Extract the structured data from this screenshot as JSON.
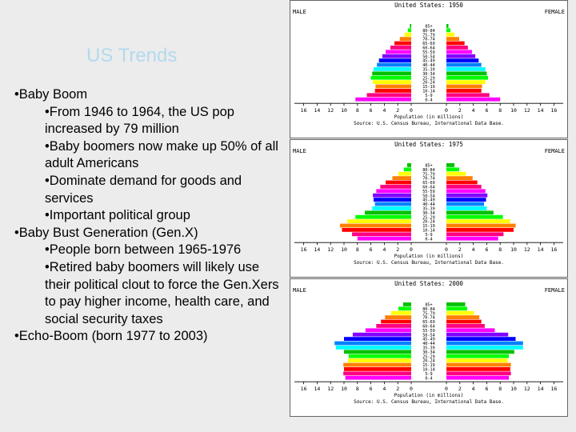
{
  "slide": {
    "title": "US Trends",
    "bullets": [
      {
        "level": 1,
        "text": "•Baby Boom"
      },
      {
        "level": 2,
        "text": "•From 1946 to 1964, the US pop increased by 79 million"
      },
      {
        "level": 2,
        "text": "•Baby boomers now make up 50% of all adult Americans"
      },
      {
        "level": 2,
        "text": "•Dominate demand for goods and services"
      },
      {
        "level": 2,
        "text": "•Important political group"
      },
      {
        "level": 1,
        "text": "•Baby Bust Generation (Gen.X)"
      },
      {
        "level": 2,
        "text": "•People born between 1965-1976"
      },
      {
        "level": 2,
        "text": "•Retired baby boomers will likely use their political clout to force the Gen.Xers to pay higher income, health care, and social security taxes"
      },
      {
        "level": 1,
        "text": "•Echo-Boom (born 1977 to 2003)"
      }
    ]
  },
  "colors": [
    "#ff00ff",
    "#ff0080",
    "#ff0000",
    "#ff8000",
    "#ffff00",
    "#00ff00",
    "#00c000",
    "#00ffff",
    "#0080ff",
    "#0000ff",
    "#8000ff",
    "#ff00ff",
    "#ff0080",
    "#ff0000",
    "#ff8000",
    "#ffff00",
    "#00ff00",
    "#00c000"
  ],
  "chart_data": [
    {
      "type": "bar",
      "title": "United States: 1950",
      "left_label": "MALE",
      "right_label": "FEMALE",
      "xlabel": "Population (in millions)",
      "source": "Source: U.S. Census Bureau, International Data Base.",
      "x_ticks": [
        "16",
        "14",
        "12",
        "10",
        "8",
        "6",
        "4",
        "2",
        "0",
        "0",
        "2",
        "4",
        "6",
        "8",
        "10",
        "12",
        "14",
        "16"
      ],
      "categories": [
        "0-4",
        "5-9",
        "10-14",
        "15-19",
        "20-24",
        "25-29",
        "30-34",
        "35-39",
        "40-44",
        "45-49",
        "50-54",
        "55-59",
        "60-64",
        "65-69",
        "70-74",
        "75-79",
        "80-84",
        "85+"
      ],
      "xlim": [
        0,
        16
      ],
      "series": [
        {
          "name": "MALE",
          "values": [
            8.3,
            6.6,
            5.4,
            5.3,
            5.7,
            6.0,
            5.8,
            5.6,
            5.1,
            4.8,
            4.3,
            3.8,
            3.1,
            2.5,
            1.7,
            1.0,
            0.5,
            0.2
          ]
        },
        {
          "name": "FEMALE",
          "values": [
            8.0,
            6.4,
            5.2,
            5.3,
            5.8,
            6.2,
            6.0,
            5.8,
            5.2,
            4.8,
            4.3,
            3.8,
            3.2,
            2.7,
            1.9,
            1.2,
            0.6,
            0.3
          ]
        }
      ]
    },
    {
      "type": "bar",
      "title": "United States: 1975",
      "left_label": "MALE",
      "right_label": "FEMALE",
      "xlabel": "Population (in millions)",
      "source": "Source: U.S. Census Bureau, International Data Base.",
      "x_ticks": [
        "16",
        "14",
        "12",
        "10",
        "8",
        "6",
        "4",
        "2",
        "0",
        "0",
        "2",
        "4",
        "6",
        "8",
        "10",
        "12",
        "14",
        "16"
      ],
      "categories": [
        "0-4",
        "5-9",
        "10-14",
        "15-19",
        "20-24",
        "25-29",
        "30-34",
        "35-39",
        "40-44",
        "45-49",
        "50-54",
        "55-59",
        "60-64",
        "65-69",
        "70-74",
        "75-79",
        "80-84",
        "85+"
      ],
      "xlim": [
        0,
        16
      ],
      "series": [
        {
          "name": "MALE",
          "values": [
            8.0,
            8.8,
            10.3,
            10.6,
            9.5,
            8.3,
            6.9,
            5.8,
            5.4,
            5.6,
            5.7,
            5.2,
            4.6,
            3.8,
            2.8,
            1.9,
            1.1,
            0.6
          ]
        },
        {
          "name": "FEMALE",
          "values": [
            7.7,
            8.5,
            10.0,
            10.3,
            9.5,
            8.4,
            7.0,
            6.0,
            5.6,
            5.9,
            6.1,
            5.8,
            5.2,
            4.6,
            3.9,
            2.9,
            1.9,
            1.2
          ]
        }
      ]
    },
    {
      "type": "bar",
      "title": "United States: 2000",
      "left_label": "MALE",
      "right_label": "FEMALE",
      "xlabel": "Population (in millions)",
      "source": "Source: U.S. Census Bureau, International Data Base.",
      "x_ticks": [
        "16",
        "14",
        "12",
        "10",
        "8",
        "6",
        "4",
        "2",
        "0",
        "0",
        "2",
        "4",
        "6",
        "8",
        "10",
        "12",
        "14",
        "16"
      ],
      "categories": [
        "0-4",
        "5-9",
        "10-14",
        "15-19",
        "20-24",
        "25-29",
        "30-34",
        "35-39",
        "40-44",
        "45-49",
        "50-54",
        "55-59",
        "60-64",
        "65-69",
        "70-74",
        "75-79",
        "80-84",
        "85+"
      ],
      "xlim": [
        0,
        16
      ],
      "series": [
        {
          "name": "MALE",
          "values": [
            9.8,
            10.1,
            10.0,
            10.1,
            9.4,
            9.3,
            10.0,
            11.2,
            11.4,
            10.0,
            8.7,
            6.8,
            5.2,
            4.5,
            3.9,
            3.0,
            1.9,
            1.2
          ]
        },
        {
          "name": "FEMALE",
          "values": [
            9.3,
            9.6,
            9.5,
            9.6,
            9.1,
            9.3,
            10.1,
            11.4,
            11.4,
            10.3,
            9.2,
            7.2,
            5.7,
            5.2,
            4.9,
            4.1,
            3.1,
            2.8
          ]
        }
      ]
    }
  ]
}
